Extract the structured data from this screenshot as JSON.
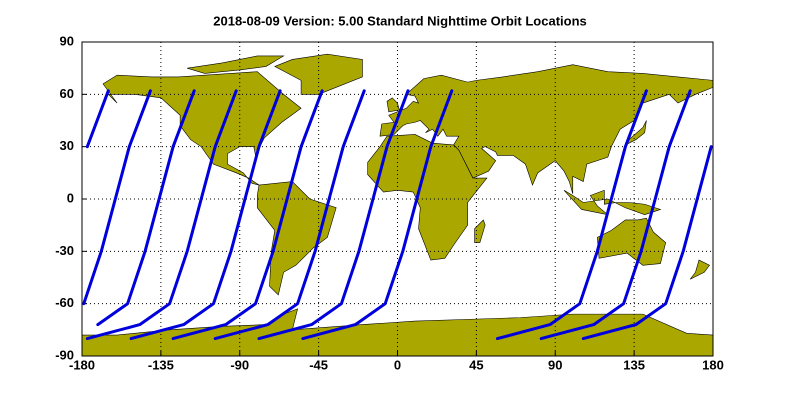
{
  "chart_data": {
    "type": "line",
    "title": "2018-08-09    Version: 5.00  Standard     Nighttime Orbit Locations",
    "xlim": [
      -180,
      180
    ],
    "ylim": [
      -90,
      90
    ],
    "xticks": [
      -180,
      -135,
      -90,
      -45,
      0,
      45,
      90,
      135,
      180
    ],
    "yticks": [
      -90,
      -60,
      -30,
      0,
      30,
      60,
      90
    ],
    "grid": true,
    "series": [
      {
        "color": "#0000dd",
        "x": [
          -165,
          -177
        ],
        "y": [
          62,
          30
        ]
      },
      {
        "color": "#0000dd",
        "x": [
          -141,
          -153,
          -161,
          -169,
          -179
        ],
        "y": [
          62,
          30,
          0,
          -30,
          -60
        ]
      },
      {
        "color": "#0000dd",
        "x": [
          -116,
          -128,
          -136,
          -144,
          -154,
          -171
        ],
        "y": [
          62,
          30,
          0,
          -30,
          -60,
          -72
        ]
      },
      {
        "color": "#0000dd",
        "x": [
          -92,
          -104,
          -112,
          -120,
          -130,
          -147,
          -177
        ],
        "y": [
          62,
          30,
          0,
          -30,
          -60,
          -72,
          -80
        ]
      },
      {
        "color": "#0000dd",
        "x": [
          -67,
          -79,
          -87,
          -95,
          -105,
          -122,
          -152
        ],
        "y": [
          62,
          30,
          0,
          -30,
          -60,
          -72,
          -80
        ]
      },
      {
        "color": "#0000dd",
        "x": [
          -43,
          -55,
          -63,
          -71,
          -81,
          -98,
          -128
        ],
        "y": [
          62,
          30,
          0,
          -30,
          -60,
          -72,
          -80
        ]
      },
      {
        "color": "#0000dd",
        "x": [
          -19,
          -31,
          -39,
          -47,
          -57,
          -74,
          -104
        ],
        "y": [
          62,
          30,
          0,
          -30,
          -60,
          -72,
          -80
        ]
      },
      {
        "color": "#0000dd",
        "x": [
          6,
          -6,
          -14,
          -22,
          -32,
          -49,
          -79
        ],
        "y": [
          62,
          30,
          0,
          -30,
          -60,
          -72,
          -80
        ]
      },
      {
        "color": "#0000dd",
        "x": [
          31,
          19,
          11,
          3,
          -7,
          -24,
          -54
        ],
        "y": [
          62,
          30,
          0,
          -30,
          -60,
          -72,
          -80
        ]
      },
      {
        "color": "#0000dd",
        "x": [
          142,
          130,
          122,
          114,
          104,
          87,
          57
        ],
        "y": [
          62,
          30,
          0,
          -30,
          -60,
          -72,
          -80
        ]
      },
      {
        "color": "#0000dd",
        "x": [
          167,
          155,
          147,
          139,
          129,
          112,
          82
        ],
        "y": [
          62,
          30,
          0,
          -30,
          -60,
          -72,
          -80
        ]
      },
      {
        "color": "#0000dd",
        "x": [
          179,
          171,
          163,
          153,
          136,
          106
        ],
        "y": [
          30,
          0,
          -30,
          -60,
          -72,
          -80
        ]
      }
    ]
  }
}
